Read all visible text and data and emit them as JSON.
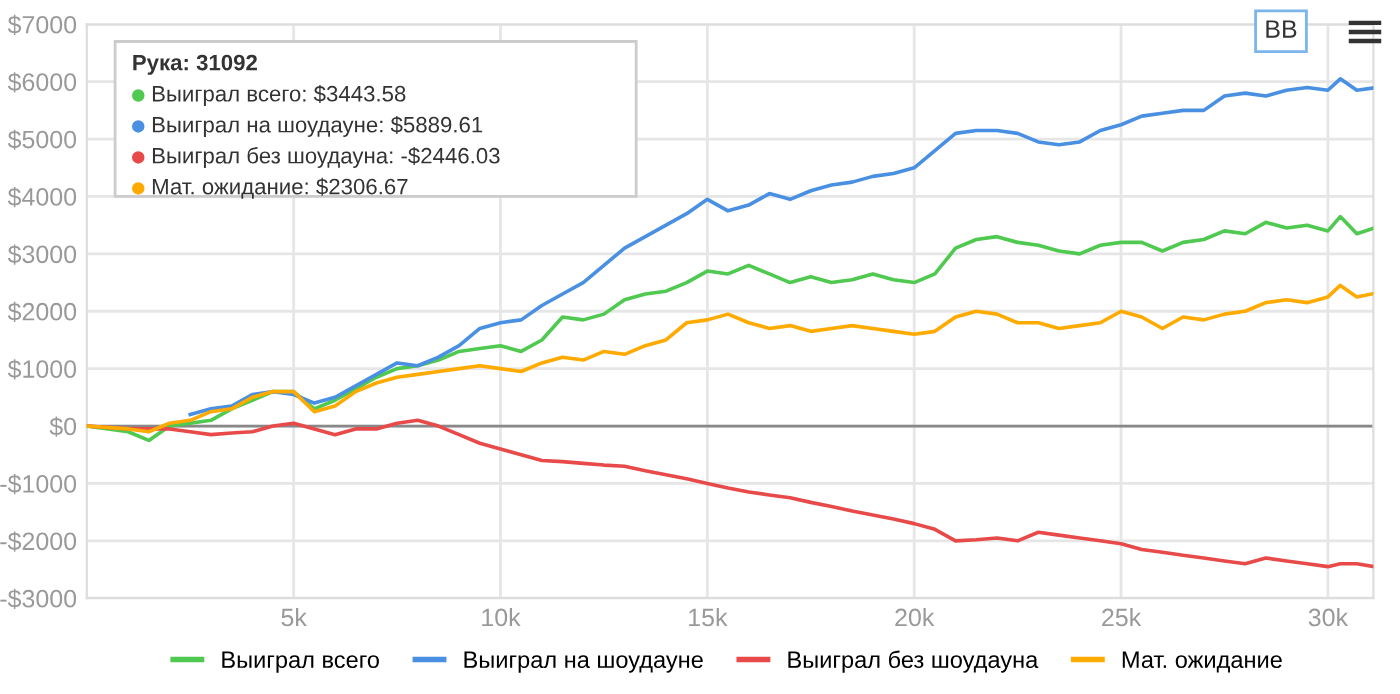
{
  "chart_data": {
    "type": "line",
    "x": [
      0,
      1000,
      1500,
      2000,
      2500,
      3000,
      3500,
      4000,
      4500,
      5000,
      5500,
      6000,
      6500,
      7000,
      7500,
      8000,
      8500,
      9000,
      9500,
      10000,
      10500,
      11000,
      11500,
      12000,
      12500,
      13000,
      13500,
      14000,
      14500,
      15000,
      15500,
      16000,
      16500,
      17000,
      17500,
      18000,
      18500,
      19000,
      19500,
      20000,
      20500,
      21000,
      21500,
      22000,
      22500,
      23000,
      23500,
      24000,
      24500,
      25000,
      25500,
      26000,
      26500,
      27000,
      27500,
      28000,
      28500,
      29000,
      29500,
      30000,
      30300,
      30700,
      31092
    ],
    "series": [
      {
        "name": "Выиграл всего",
        "color": "#4fc94f",
        "values": [
          0,
          -100,
          -250,
          0,
          50,
          100,
          300,
          450,
          600,
          600,
          300,
          450,
          650,
          850,
          1000,
          1050,
          1150,
          1300,
          1350,
          1400,
          1300,
          1500,
          1900,
          1850,
          1950,
          2200,
          2300,
          2350,
          2500,
          2700,
          2650,
          2800,
          2650,
          2500,
          2600,
          2500,
          2550,
          2650,
          2550,
          2500,
          2650,
          3100,
          3250,
          3300,
          3200,
          3150,
          3050,
          3000,
          3150,
          3200,
          3200,
          3050,
          3200,
          3250,
          3400,
          3350,
          3550,
          3450,
          3500,
          3400,
          3650,
          3350,
          3443.58
        ]
      },
      {
        "name": "Выиграл на шоудауне",
        "color": "#4a90e2",
        "values": [
          null,
          null,
          null,
          null,
          200,
          300,
          350,
          550,
          600,
          550,
          400,
          500,
          700,
          900,
          1100,
          1050,
          1200,
          1400,
          1700,
          1800,
          1850,
          2100,
          2300,
          2500,
          2800,
          3100,
          3300,
          3500,
          3700,
          3950,
          3750,
          3850,
          4050,
          3950,
          4100,
          4200,
          4250,
          4350,
          4400,
          4500,
          4800,
          5100,
          5150,
          5150,
          5100,
          4950,
          4900,
          4950,
          5150,
          5250,
          5400,
          5450,
          5500,
          5500,
          5750,
          5800,
          5750,
          5850,
          5900,
          5850,
          6050,
          5850,
          5889.61
        ]
      },
      {
        "name": "Выиграл без шоудауна",
        "color": "#e84a4a",
        "values": [
          0,
          -50,
          -50,
          -50,
          -100,
          -150,
          -120,
          -100,
          0,
          50,
          -50,
          -150,
          -50,
          -50,
          50,
          100,
          0,
          -150,
          -300,
          -400,
          -500,
          -600,
          -620,
          -650,
          -680,
          -700,
          -780,
          -850,
          -920,
          -1000,
          -1080,
          -1150,
          -1200,
          -1250,
          -1330,
          -1400,
          -1480,
          -1550,
          -1620,
          -1700,
          -1800,
          -2000,
          -1980,
          -1950,
          -2000,
          -1850,
          -1900,
          -1950,
          -2000,
          -2050,
          -2150,
          -2200,
          -2250,
          -2300,
          -2350,
          -2400,
          -2300,
          -2350,
          -2400,
          -2450,
          -2400,
          -2400,
          -2446.03
        ]
      },
      {
        "name": "Мат. ожидание",
        "color": "#ffaa00",
        "values": [
          0,
          -50,
          -100,
          50,
          100,
          250,
          300,
          500,
          600,
          600,
          250,
          350,
          600,
          750,
          850,
          900,
          950,
          1000,
          1050,
          1000,
          950,
          1100,
          1200,
          1150,
          1300,
          1250,
          1400,
          1500,
          1800,
          1850,
          1950,
          1800,
          1700,
          1750,
          1650,
          1700,
          1750,
          1700,
          1650,
          1600,
          1650,
          1900,
          2000,
          1950,
          1800,
          1800,
          1700,
          1750,
          1800,
          2000,
          1900,
          1700,
          1900,
          1850,
          1950,
          2000,
          2150,
          2200,
          2150,
          2250,
          2450,
          2250,
          2306.67
        ]
      }
    ],
    "xlim": [
      0,
      31100
    ],
    "xticks": [
      {
        "value": 5000,
        "label": "5k"
      },
      {
        "value": 10000,
        "label": "10k"
      },
      {
        "value": 15000,
        "label": "15k"
      },
      {
        "value": 20000,
        "label": "20k"
      },
      {
        "value": 25000,
        "label": "25k"
      },
      {
        "value": 30000,
        "label": "30k"
      }
    ],
    "ylim": [
      -3000,
      7000
    ],
    "yticks": [
      {
        "value": -3000,
        "label": "-$3000"
      },
      {
        "value": -2000,
        "label": "-$2000"
      },
      {
        "value": -1000,
        "label": "-$1000"
      },
      {
        "value": 0,
        "label": "$0"
      },
      {
        "value": 1000,
        "label": "$1000"
      },
      {
        "value": 2000,
        "label": "$2000"
      },
      {
        "value": 3000,
        "label": "$3000"
      },
      {
        "value": 4000,
        "label": "$4000"
      },
      {
        "value": 5000,
        "label": "$5000"
      },
      {
        "value": 6000,
        "label": "$6000"
      },
      {
        "value": 7000,
        "label": "$7000"
      }
    ],
    "ref_lines": [
      {
        "axis": "y",
        "value": 0,
        "color": "#888888"
      }
    ],
    "grid": true,
    "legend": "bottom",
    "marker": "none",
    "line_style": "solid",
    "annotations": [
      "Рука: 31092",
      "Выиграл всего: $3443.58",
      "Выиграл на шоудауне: $5889.61",
      "Выиграл без шоудауна: -$2446.03",
      "Мат. ожидание: $2306.67",
      "BB"
    ]
  }
}
